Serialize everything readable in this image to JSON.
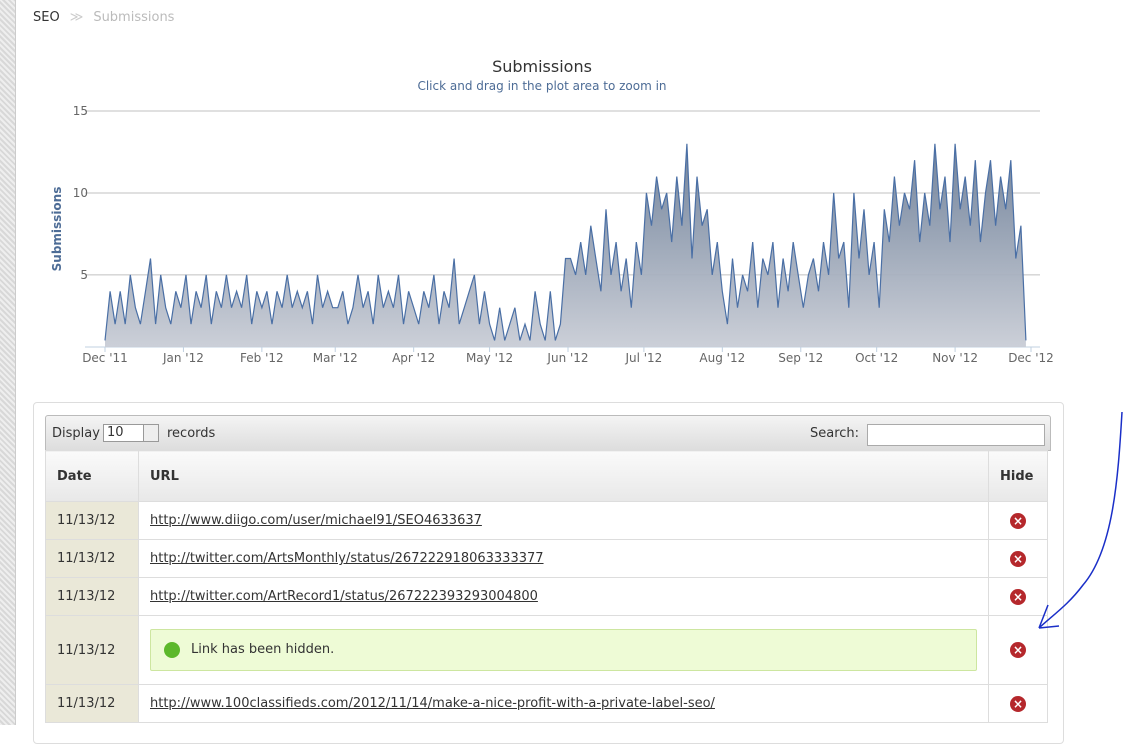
{
  "breadcrumb": {
    "root": "SEO",
    "current": "Submissions"
  },
  "chart_data": {
    "type": "area",
    "title": "Submissions",
    "subtitle": "Click and drag in the plot area to zoom in",
    "y_label": "Submissions",
    "x": [
      0,
      2,
      4,
      6,
      8,
      10,
      12,
      14,
      16,
      18,
      20,
      22,
      24,
      26,
      28,
      30,
      32,
      34,
      36,
      38,
      40,
      42,
      44,
      46,
      48,
      50,
      52,
      54,
      56,
      58,
      60,
      62,
      64,
      66,
      68,
      70,
      72,
      74,
      76,
      78,
      80,
      82,
      84,
      86,
      88,
      90,
      92,
      94,
      96,
      98,
      100,
      102,
      104,
      106,
      108,
      110,
      112,
      114,
      116,
      118,
      120,
      122,
      124,
      126,
      128,
      130,
      132,
      134,
      136,
      138,
      140,
      142,
      144,
      146,
      148,
      150,
      152,
      154,
      156,
      158,
      160,
      162,
      164,
      166,
      168,
      170,
      172,
      174,
      176,
      178,
      180,
      182,
      184,
      186,
      188,
      190,
      192,
      194,
      196,
      198,
      200,
      202,
      204,
      206,
      208,
      210,
      212,
      214,
      216,
      218,
      220,
      222,
      224,
      226,
      228,
      230,
      232,
      234,
      236,
      238,
      240,
      242,
      244,
      246,
      248,
      250,
      252,
      254,
      256,
      258,
      260,
      262,
      264,
      266,
      268,
      270,
      272,
      274,
      276,
      278,
      280,
      282,
      284,
      286,
      288,
      290,
      292,
      294,
      296,
      298,
      300,
      302,
      304,
      306,
      308,
      310,
      312,
      314,
      316,
      318,
      320,
      322,
      324,
      326,
      328,
      330,
      332,
      334,
      336,
      338,
      340,
      342,
      344,
      346,
      348,
      350,
      352,
      354,
      356,
      358,
      360,
      362,
      364
    ],
    "series": [
      {
        "name": "Submissions",
        "color": "#4a6fa5",
        "values": [
          1,
          4,
          2,
          4,
          2,
          5,
          3,
          2,
          4,
          6,
          2,
          5,
          3,
          2,
          4,
          3,
          5,
          2,
          4,
          3,
          5,
          2,
          4,
          3,
          5,
          3,
          4,
          3,
          5,
          2,
          4,
          3,
          4,
          2,
          4,
          3,
          5,
          3,
          4,
          3,
          4,
          2,
          5,
          3,
          4,
          3,
          3,
          4,
          2,
          3,
          5,
          3,
          4,
          2,
          5,
          3,
          4,
          3,
          5,
          2,
          4,
          3,
          2,
          4,
          3,
          5,
          2,
          4,
          3,
          6,
          2,
          3,
          4,
          5,
          2,
          4,
          2,
          1,
          3,
          1,
          2,
          3,
          1,
          2,
          1,
          4,
          2,
          1,
          4,
          1,
          2,
          6,
          6,
          5,
          7,
          5,
          8,
          6,
          4,
          9,
          5,
          7,
          4,
          6,
          3,
          7,
          5,
          10,
          8,
          11,
          9,
          10,
          7,
          11,
          8,
          13,
          6,
          11,
          8,
          9,
          5,
          7,
          4,
          2,
          6,
          3,
          5,
          4,
          7,
          3,
          6,
          5,
          7,
          3,
          6,
          4,
          7,
          5,
          3,
          5,
          6,
          4,
          7,
          5,
          10,
          6,
          7,
          3,
          10,
          6,
          9,
          5,
          7,
          3,
          9,
          7,
          11,
          8,
          10,
          9,
          12,
          7,
          10,
          8,
          13,
          9,
          11,
          7,
          13,
          9,
          11,
          8,
          12,
          7,
          10,
          12,
          8,
          11,
          9,
          12,
          6,
          8,
          1
        ]
      }
    ],
    "xlim": [
      0,
      366
    ],
    "xticks": [
      {
        "value": 0,
        "label": "Dec '11"
      },
      {
        "value": 31,
        "label": "Jan '12"
      },
      {
        "value": 62,
        "label": "Feb '12"
      },
      {
        "value": 91,
        "label": "Mar '12"
      },
      {
        "value": 122,
        "label": "Apr '12"
      },
      {
        "value": 152,
        "label": "May '12"
      },
      {
        "value": 183,
        "label": "Jun '12"
      },
      {
        "value": 213,
        "label": "Jul '12"
      },
      {
        "value": 244,
        "label": "Aug '12"
      },
      {
        "value": 275,
        "label": "Sep '12"
      },
      {
        "value": 305,
        "label": "Oct '12"
      },
      {
        "value": 336,
        "label": "Nov '12"
      },
      {
        "value": 366,
        "label": "Dec '12"
      }
    ],
    "ylim": [
      0.6,
      15
    ],
    "yticks": [
      5,
      10,
      15
    ],
    "grid": true
  },
  "controls": {
    "display": "Display",
    "page_size": "10",
    "records": "records",
    "search": "Search:"
  },
  "table": {
    "columns": [
      "Date",
      "URL",
      "Hide"
    ],
    "rows": [
      {
        "date": "11/13/12",
        "url": "http://www.diigo.com/user/michael91/SEO4633637"
      },
      {
        "date": "11/13/12",
        "url": "http://twitter.com/ArtsMonthly/status/267222918063333377"
      },
      {
        "date": "11/13/12",
        "url": "http://twitter.com/ArtRecord1/status/267222393293004800"
      },
      {
        "date": "11/13/12",
        "message": "Link has been hidden."
      },
      {
        "date": "11/13/12",
        "url": "http://www.100classifieds.com/2012/11/14/make-a-nice-profit-with-a-private-label-seo/"
      }
    ]
  }
}
